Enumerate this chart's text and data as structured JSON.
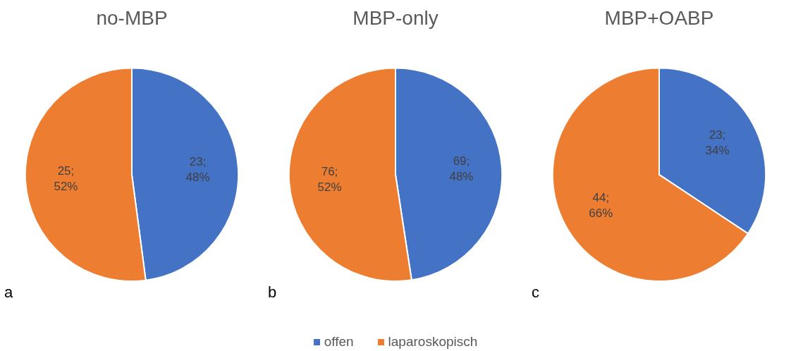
{
  "chart_data": [
    {
      "type": "pie",
      "title": "no-MBP",
      "categories": [
        null,
        null
      ],
      "values": [
        23,
        25
      ],
      "colors": [
        "#4472c4",
        "#ed7d31"
      ],
      "value_labels": [
        "23; 48%",
        "25; 52%"
      ],
      "annotations": [
        "a"
      ],
      "legend": false
    },
    {
      "type": "pie",
      "title": "MBP-only",
      "categories": [
        "offen",
        "laparoskopisch"
      ],
      "values": [
        69,
        76
      ],
      "colors": [
        "#4472c4",
        "#ed7d31"
      ],
      "value_labels": [
        "69; 48%",
        "76; 52%"
      ],
      "annotations": [
        "b"
      ],
      "legend": "bottom"
    },
    {
      "type": "pie",
      "title": "MBP+OABP",
      "categories": [
        null,
        null
      ],
      "values": [
        23,
        44
      ],
      "colors": [
        "#4472c4",
        "#ed7d31"
      ],
      "value_labels": [
        "23; 34%",
        "44; 66%"
      ],
      "annotations": [
        "c"
      ],
      "legend": false
    }
  ]
}
